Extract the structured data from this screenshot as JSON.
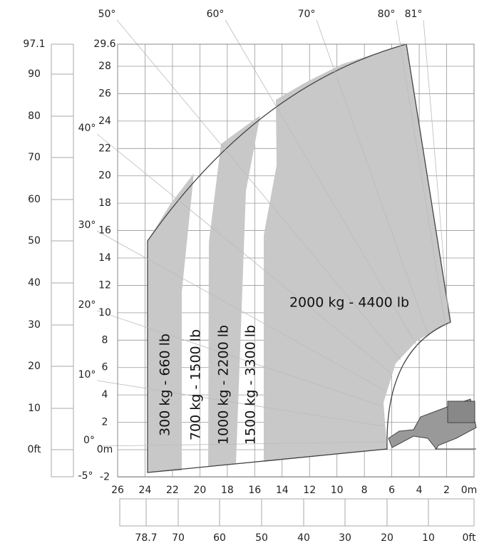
{
  "y_axis_m": [
    "29.6",
    "28",
    "26",
    "24",
    "22",
    "20",
    "18",
    "16",
    "14",
    "12",
    "10",
    "8",
    "6",
    "4",
    "2",
    "0m",
    "-2"
  ],
  "y_axis_ft": [
    "97.1",
    "90",
    "80",
    "70",
    "60",
    "50",
    "40",
    "30",
    "20",
    "10",
    "0ft"
  ],
  "x_axis_m": [
    "26",
    "24",
    "22",
    "20",
    "18",
    "16",
    "14",
    "12",
    "10",
    "8",
    "6",
    "4",
    "2",
    "0m"
  ],
  "x_axis_ft": [
    "78.7",
    "70",
    "60",
    "50",
    "40",
    "30",
    "20",
    "10",
    "0ft"
  ],
  "angles": [
    "50°",
    "60°",
    "70°",
    "80°",
    "81°",
    "40°",
    "30°",
    "20°",
    "10°",
    "0°",
    "-5°"
  ],
  "load_zones": [
    "300 kg - 660 lb",
    "700 kg - 1500 lb",
    "1000 kg - 2200 lb",
    "1500 kg - 3300 lb",
    "2000 kg - 4400 lb"
  ]
}
